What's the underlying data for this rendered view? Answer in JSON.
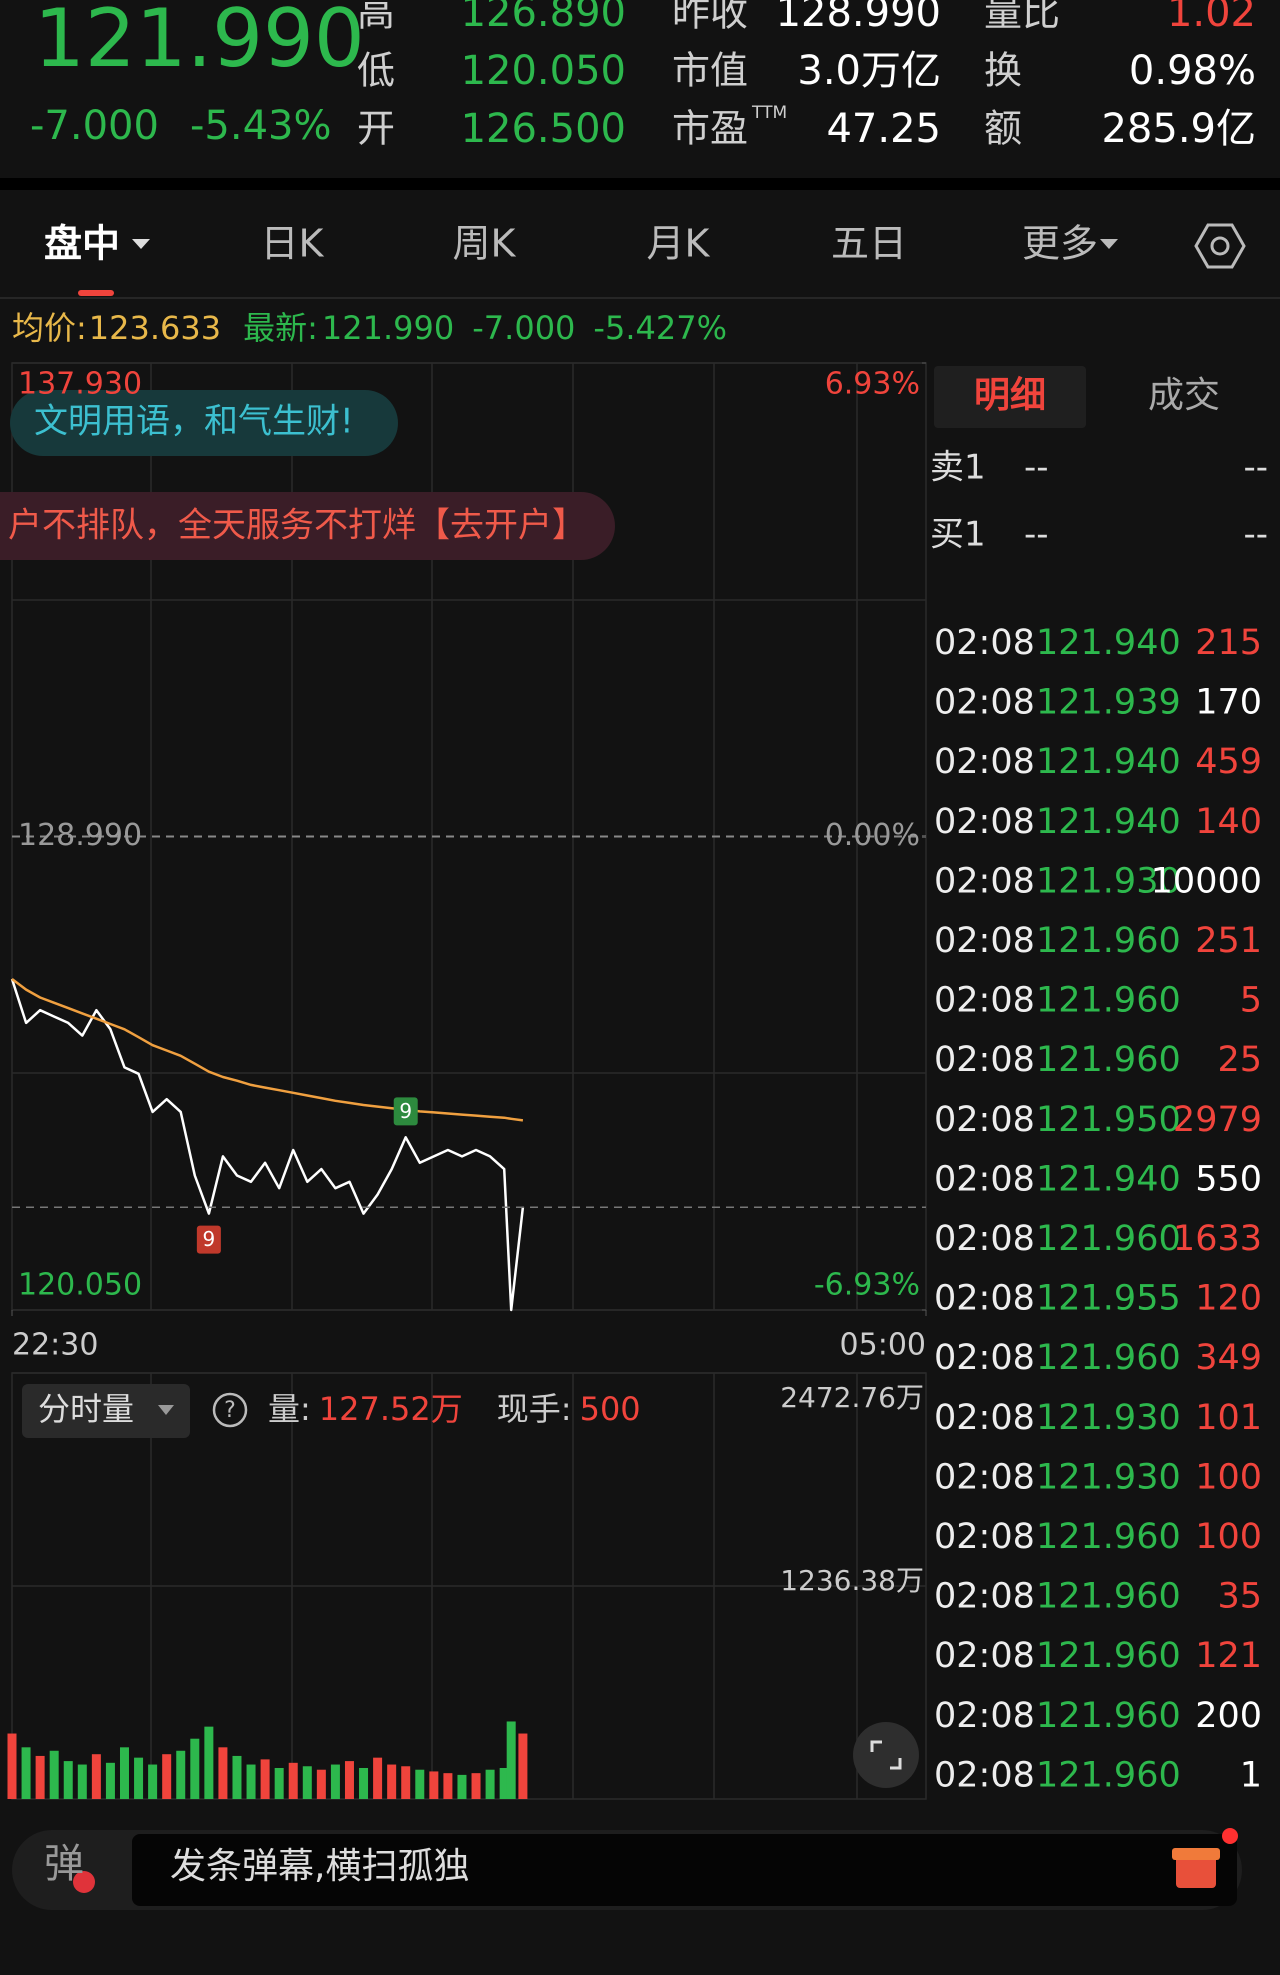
{
  "quote": {
    "price": "121.990",
    "change": "-7.000",
    "change_pct": "-5.43%",
    "stats": [
      {
        "label": "高",
        "value": "126.890",
        "color": "#2db84d"
      },
      {
        "label": "昨收",
        "value": "128.990",
        "color": "#ffffff"
      },
      {
        "label": "量比",
        "value": "1.02",
        "color": "#f0443c"
      },
      {
        "label": "低",
        "value": "120.050",
        "color": "#2db84d"
      },
      {
        "label": "市值",
        "value": "3.0万亿",
        "color": "#ffffff"
      },
      {
        "label": "换",
        "value": "0.98%",
        "color": "#ffffff"
      },
      {
        "label": "开",
        "value": "126.500",
        "color": "#2db84d"
      },
      {
        "label": "市盈",
        "sup": "TTM",
        "value": "47.25",
        "color": "#ffffff"
      },
      {
        "label": "额",
        "value": "285.9亿",
        "color": "#ffffff"
      }
    ]
  },
  "tabs": [
    "盘中",
    "日K",
    "周K",
    "月K",
    "五日",
    "更多"
  ],
  "summary": {
    "avg_label": "均价:",
    "avg": "123.633",
    "latest_label": "最新:",
    "latest": "121.990",
    "change": "-7.000",
    "change_pct": "-5.427%"
  },
  "banners": [
    "文明用语，和气生财!",
    "户不排队，全天服务不打烊【去开户】"
  ],
  "chart_data": [
    {
      "type": "line",
      "x": [
        0,
        6,
        12,
        18,
        24,
        30,
        36,
        42,
        48,
        54,
        60,
        66,
        72,
        78,
        84,
        90,
        96,
        102,
        108,
        114,
        120,
        126,
        132,
        138,
        144,
        150,
        156,
        162,
        168,
        174,
        180,
        186,
        192,
        198,
        204,
        210,
        213,
        218
      ],
      "xlim": [
        0,
        390
      ],
      "xticks": [
        {
          "value": 0,
          "label": "22:30"
        },
        {
          "value": 390,
          "label": "05:00"
        }
      ],
      "ylim": [
        120.05,
        137.93
      ],
      "yticks": [
        {
          "value": 137.93,
          "label": "137.930"
        },
        {
          "value": 128.99,
          "label": "128.990"
        },
        {
          "value": 120.05,
          "label": "120.050"
        }
      ],
      "y2lim": [
        -6.93,
        6.93
      ],
      "y2ticks": [
        {
          "value": 6.93,
          "label": "6.93%"
        },
        {
          "value": 0,
          "label": "0.00%"
        },
        {
          "value": -6.93,
          "label": "-6.93%"
        }
      ],
      "series": [
        {
          "name": "最新",
          "color": "#ffffff",
          "values": [
            126.3,
            125.47,
            125.71,
            125.59,
            125.47,
            125.23,
            125.71,
            125.35,
            124.63,
            124.51,
            123.79,
            124.03,
            123.79,
            122.59,
            121.87,
            122.95,
            122.59,
            122.47,
            122.83,
            122.35,
            123.07,
            122.47,
            122.71,
            122.35,
            122.47,
            121.87,
            122.23,
            122.71,
            123.31,
            122.83,
            122.95,
            123.07,
            122.95,
            123.07,
            122.95,
            122.71,
            120.05,
            121.99
          ]
        },
        {
          "name": "均价",
          "color": "#f0a040",
          "values": [
            126.3,
            126.1,
            125.95,
            125.85,
            125.75,
            125.65,
            125.55,
            125.45,
            125.35,
            125.2,
            125.05,
            124.95,
            124.85,
            124.7,
            124.55,
            124.45,
            124.38,
            124.3,
            124.25,
            124.2,
            124.15,
            124.1,
            124.05,
            124.0,
            123.96,
            123.92,
            123.89,
            123.86,
            123.83,
            123.8,
            123.78,
            123.76,
            123.74,
            123.72,
            123.7,
            123.68,
            123.66,
            123.63
          ]
        }
      ],
      "annotations": [
        {
          "text": "9",
          "x": 84,
          "y": 121.87,
          "color": "#c0392b",
          "position": "below"
        },
        {
          "text": "9",
          "x": 168,
          "y": 123.31,
          "color": "#2d8a3e",
          "position": "above"
        }
      ]
    },
    {
      "type": "bar",
      "title": "分时量",
      "volume_label": "量:",
      "volume": "127.52万",
      "hand_label": "现手:",
      "hand": "500",
      "x": [
        0,
        6,
        12,
        18,
        24,
        30,
        36,
        42,
        48,
        54,
        60,
        66,
        72,
        78,
        84,
        90,
        96,
        102,
        108,
        114,
        120,
        126,
        132,
        138,
        144,
        150,
        156,
        162,
        168,
        174,
        180,
        186,
        192,
        198,
        204,
        210,
        213,
        218
      ],
      "xlim": [
        0,
        390
      ],
      "ylim": [
        0,
        2472.76
      ],
      "yticks": [
        {
          "value": 2472.76,
          "label": "2472.76万"
        },
        {
          "value": 1236.38,
          "label": "1236.38万"
        }
      ],
      "up_color": "#f0443c",
      "down_color": "#2db84d",
      "values": [
        380,
        300,
        250,
        280,
        220,
        200,
        260,
        210,
        300,
        240,
        200,
        260,
        280,
        350,
        420,
        300,
        250,
        200,
        230,
        180,
        210,
        190,
        170,
        200,
        220,
        180,
        240,
        200,
        190,
        170,
        160,
        150,
        140,
        150,
        170,
        180,
        450,
        380
      ]
    }
  ],
  "detail": {
    "tabs": [
      "明细",
      "成交"
    ],
    "book": [
      {
        "label": "卖1",
        "price": "--",
        "volume": "--"
      },
      {
        "label": "买1",
        "price": "--",
        "volume": "--"
      }
    ],
    "trades": [
      {
        "time": "02:08",
        "price": "121.940",
        "volume": "215",
        "color": "#f0443c"
      },
      {
        "time": "02:08",
        "price": "121.939",
        "volume": "170",
        "color": "#ffffff"
      },
      {
        "time": "02:08",
        "price": "121.940",
        "volume": "459",
        "color": "#f0443c"
      },
      {
        "time": "02:08",
        "price": "121.940",
        "volume": "140",
        "color": "#f0443c"
      },
      {
        "time": "02:08",
        "price": "121.930",
        "volume": "10000",
        "color": "#ffffff"
      },
      {
        "time": "02:08",
        "price": "121.960",
        "volume": "251",
        "color": "#f0443c"
      },
      {
        "time": "02:08",
        "price": "121.960",
        "volume": "5",
        "color": "#f0443c"
      },
      {
        "time": "02:08",
        "price": "121.960",
        "volume": "25",
        "color": "#f0443c"
      },
      {
        "time": "02:08",
        "price": "121.950",
        "volume": "2979",
        "color": "#f0443c"
      },
      {
        "time": "02:08",
        "price": "121.940",
        "volume": "550",
        "color": "#ffffff"
      },
      {
        "time": "02:08",
        "price": "121.960",
        "volume": "1633",
        "color": "#f0443c"
      },
      {
        "time": "02:08",
        "price": "121.955",
        "volume": "120",
        "color": "#f0443c"
      },
      {
        "time": "02:08",
        "price": "121.960",
        "volume": "349",
        "color": "#f0443c"
      },
      {
        "time": "02:08",
        "price": "121.930",
        "volume": "101",
        "color": "#f0443c"
      },
      {
        "time": "02:08",
        "price": "121.930",
        "volume": "100",
        "color": "#f0443c"
      },
      {
        "time": "02:08",
        "price": "121.960",
        "volume": "100",
        "color": "#f0443c"
      },
      {
        "time": "02:08",
        "price": "121.960",
        "volume": "35",
        "color": "#f0443c"
      },
      {
        "time": "02:08",
        "price": "121.960",
        "volume": "121",
        "color": "#f0443c"
      },
      {
        "time": "02:08",
        "price": "121.960",
        "volume": "200",
        "color": "#ffffff"
      },
      {
        "time": "02:08",
        "price": "121.960",
        "volume": "1",
        "color": "#ffffff"
      }
    ]
  },
  "danmaku": {
    "icon": "弹",
    "placeholder": "发条弹幕,横扫孤独"
  }
}
